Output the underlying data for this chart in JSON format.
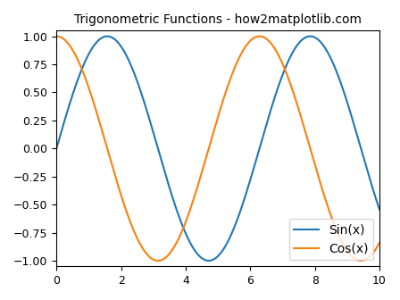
{
  "title": "Trigonometric Functions - how2matplotlib.com",
  "xlim": [
    0,
    10
  ],
  "ylim": [
    -1.05,
    1.05
  ],
  "xticks": [
    0,
    2,
    4,
    6,
    8,
    10
  ],
  "yticks": [
    -1.0,
    -0.75,
    -0.5,
    -0.25,
    0.0,
    0.25,
    0.5,
    0.75,
    1.0
  ],
  "sin_color": "#1f77b4",
  "cos_color": "#ff7f0e",
  "sin_label": "Sin(x)",
  "cos_label": "Cos(x)",
  "linewidth": 1.5,
  "legend_fontsize": 10,
  "legend_loc": "lower right",
  "title_fontsize": 10,
  "tick_fontsize": 9,
  "num_points": 1000,
  "figsize": [
    4.48,
    3.36
  ],
  "dpi": 100
}
